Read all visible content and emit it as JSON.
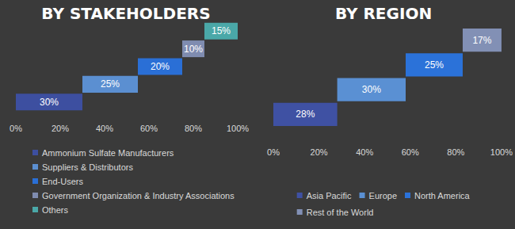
{
  "chart_data": [
    {
      "type": "bar",
      "title": "BY STAKEHOLDERS",
      "orientation": "horizontal",
      "stacked": true,
      "data_labels": true,
      "tick_labels": "x",
      "grid": false,
      "legend": "bottom",
      "xlim": [
        0,
        100
      ],
      "xticks": [
        {
          "value": 0,
          "label": "0%"
        },
        {
          "value": 20,
          "label": "20%"
        },
        {
          "value": 40,
          "label": "40%"
        },
        {
          "value": 60,
          "label": "60%"
        },
        {
          "value": 80,
          "label": "80%"
        },
        {
          "value": 100,
          "label": "100%"
        }
      ],
      "series": [
        {
          "name": "Ammonium Sulfate Manufacturers",
          "color": "#3d4fa0",
          "values": [
            30
          ],
          "value_labels": [
            "30%"
          ]
        },
        {
          "name": "Suppliers & Distributors",
          "color": "#5b8fd1",
          "values": [
            25
          ],
          "value_labels": [
            "25%"
          ]
        },
        {
          "name": "End-Users",
          "color": "#2a6fd6",
          "values": [
            20
          ],
          "value_labels": [
            "20%"
          ]
        },
        {
          "name": "Government Organization & Industry Associations",
          "color": "#7f8cb0",
          "values": [
            10
          ],
          "value_labels": [
            "10%"
          ]
        },
        {
          "name": "Others",
          "color": "#4aa8a8",
          "values": [
            15
          ],
          "value_labels": [
            "15%"
          ]
        }
      ]
    },
    {
      "type": "bar",
      "title": "BY REGION",
      "orientation": "horizontal",
      "stacked": true,
      "data_labels": true,
      "tick_labels": "x",
      "grid": false,
      "legend": "bottom",
      "xlim": [
        0,
        100
      ],
      "xticks": [
        {
          "value": 0,
          "label": "0%"
        },
        {
          "value": 20,
          "label": "20%"
        },
        {
          "value": 40,
          "label": "40%"
        },
        {
          "value": 60,
          "label": "60%"
        },
        {
          "value": 80,
          "label": "80%"
        },
        {
          "value": 100,
          "label": "100%"
        }
      ],
      "series": [
        {
          "name": "Asia Pacific",
          "color": "#3f51a3",
          "values": [
            28
          ],
          "value_labels": [
            "28%"
          ]
        },
        {
          "name": "Europe",
          "color": "#5a90d3",
          "values": [
            30
          ],
          "value_labels": [
            "30%"
          ]
        },
        {
          "name": "North America",
          "color": "#2b72d9",
          "values": [
            25
          ],
          "value_labels": [
            "25%"
          ]
        },
        {
          "name": "Rest of the World",
          "color": "#8290b5",
          "values": [
            17
          ],
          "value_labels": [
            "17%"
          ]
        }
      ]
    }
  ]
}
